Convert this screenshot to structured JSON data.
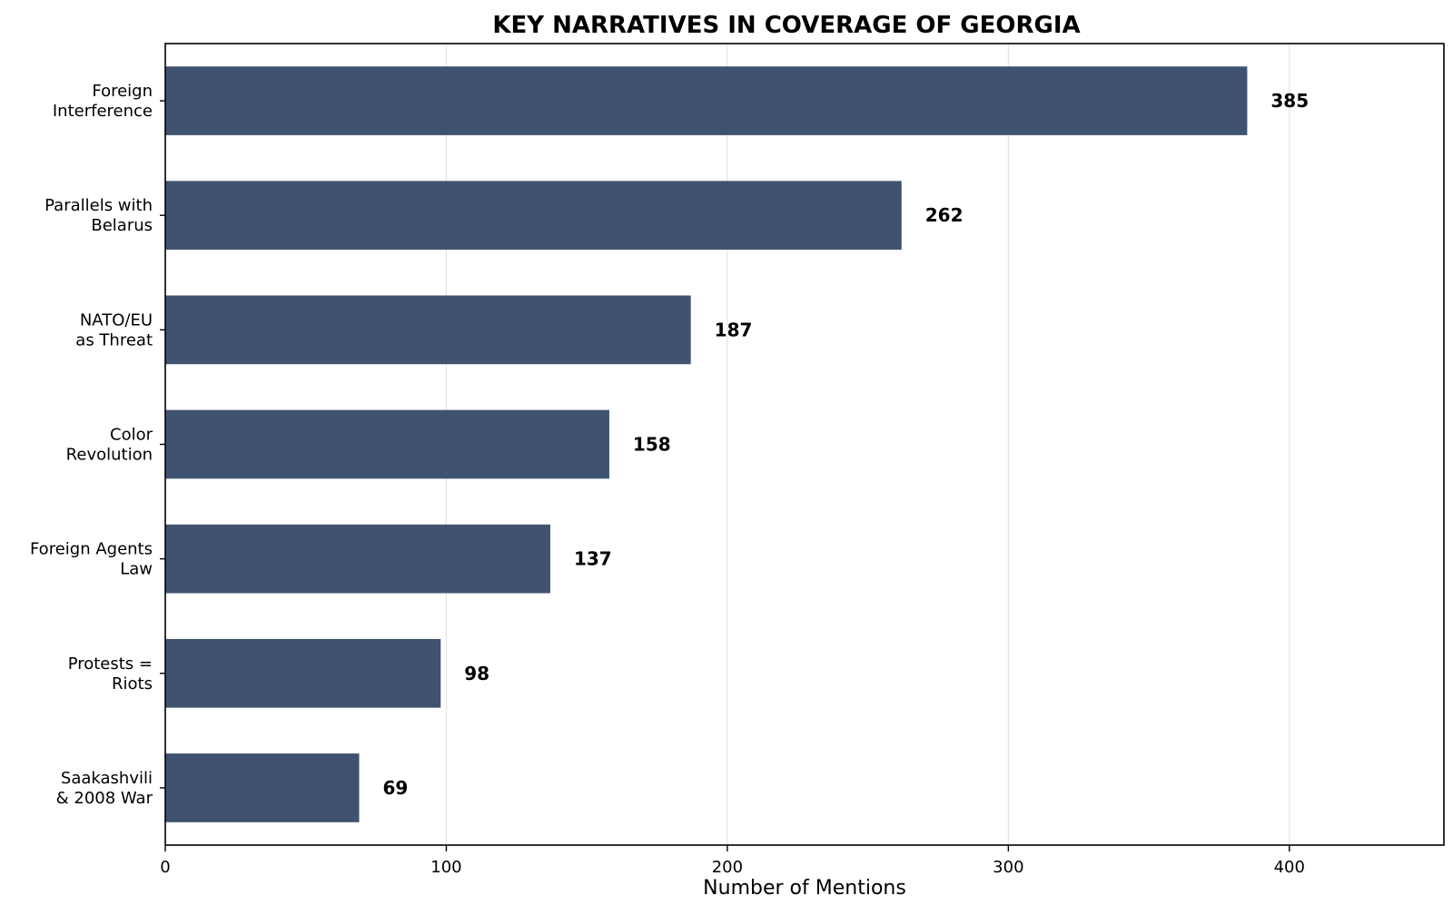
{
  "chart_data": {
    "type": "bar",
    "orientation": "horizontal",
    "title": "KEY NARRATIVES IN COVERAGE OF GEORGIA",
    "xlabel": "Number of Mentions",
    "ylabel": "",
    "xlim": [
      0,
      455
    ],
    "xticks": [
      0,
      100,
      200,
      300,
      400
    ],
    "grid": "x",
    "bar_color": "#3f5370",
    "categories": [
      [
        "Foreign",
        "Interference"
      ],
      [
        "Parallels with",
        "Belarus"
      ],
      [
        "NATO/EU",
        "as Threat"
      ],
      [
        "Color",
        "Revolution"
      ],
      [
        "Foreign Agents",
        "Law"
      ],
      [
        "Protests =",
        "Riots"
      ],
      [
        "Saakashvili",
        "& 2008 War"
      ]
    ],
    "values": [
      385,
      262,
      187,
      158,
      137,
      98,
      69
    ]
  }
}
